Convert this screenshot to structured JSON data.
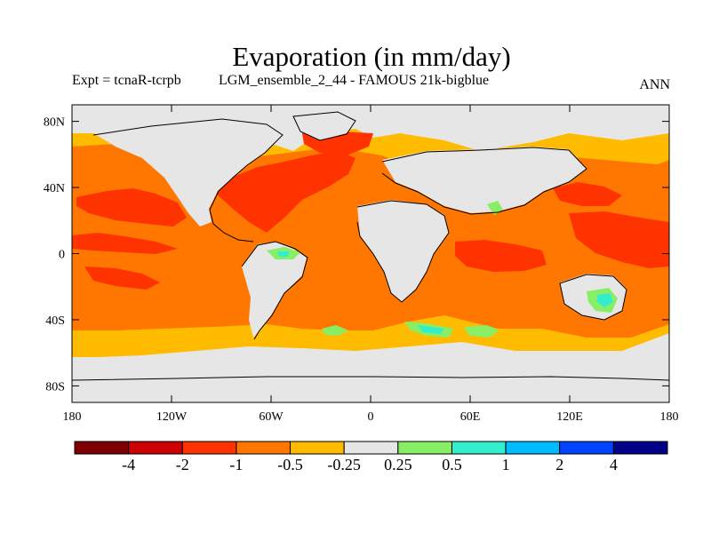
{
  "title": "Evaporation (in mm/day)",
  "subtitle_left": "Expt = tcnaR-tcrpb",
  "subtitle_mid": "LGM_ensemble_2_44 - FAMOUS 21k-bigblue",
  "subtitle_right": "ANN",
  "map": {
    "lon_range": [
      -180,
      180
    ],
    "lat_range": [
      -90,
      90
    ],
    "background_color": "#e6e6e6",
    "lat_ticks": [
      {
        "value": 80,
        "label": "80N"
      },
      {
        "value": 40,
        "label": "40N"
      },
      {
        "value": 0,
        "label": "0"
      },
      {
        "value": -40,
        "label": "40S"
      },
      {
        "value": -80,
        "label": "80S"
      }
    ],
    "lon_ticks": [
      {
        "value": -180,
        "label": "180"
      },
      {
        "value": -120,
        "label": "120W"
      },
      {
        "value": -60,
        "label": "60W"
      },
      {
        "value": 0,
        "label": "0"
      },
      {
        "value": 60,
        "label": "60E"
      },
      {
        "value": 120,
        "label": "120E"
      },
      {
        "value": 180,
        "label": "180"
      }
    ]
  },
  "colorbar": {
    "colors": [
      "#7f0000",
      "#cc0000",
      "#ff3300",
      "#ff7700",
      "#ffbb00",
      "#e6e6e6",
      "#88ee66",
      "#33eecc",
      "#00bbff",
      "#0044ff",
      "#000088"
    ],
    "labels": [
      "-4",
      "-2",
      "-1",
      "-0.5",
      "-0.25",
      "0.25",
      "0.5",
      "1",
      "2",
      "4"
    ]
  },
  "fields": {
    "orange": "#ff7700",
    "yellow": "#ffbb00",
    "red": "#ff3300",
    "green": "#88ee66",
    "teal": "#33eecc"
  }
}
